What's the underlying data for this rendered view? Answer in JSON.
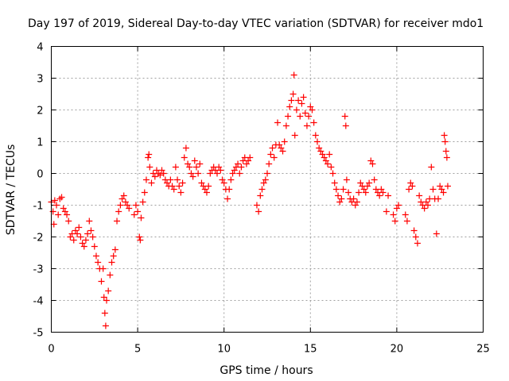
{
  "chart_data": {
    "type": "scatter",
    "title": "Day 197 of 2019, Sidereal Day-to-day VTEC variation (SDTVAR) for receiver mdo1",
    "xlabel": "GPS time / hours",
    "ylabel": "SDTVAR / TECUs",
    "xlim": [
      0,
      25
    ],
    "ylim": [
      -5,
      4
    ],
    "x_ticks": [
      "0",
      "5",
      "10",
      "15",
      "20",
      "25"
    ],
    "y_ticks": [
      "-5",
      "-4",
      "-3",
      "-2",
      "-1",
      "0",
      "1",
      "2",
      "3",
      "4"
    ],
    "grid": true,
    "marker": "+",
    "color": "#ff0000",
    "series": [
      {
        "name": "SDTVAR",
        "points": [
          [
            0.0,
            -0.9
          ],
          [
            0.1,
            -1.2
          ],
          [
            0.15,
            -1.6
          ],
          [
            0.2,
            -0.85
          ],
          [
            0.3,
            -1.0
          ],
          [
            0.4,
            -1.3
          ],
          [
            0.5,
            -0.8
          ],
          [
            0.6,
            -0.75
          ],
          [
            0.7,
            -1.1
          ],
          [
            0.8,
            -1.2
          ],
          [
            0.9,
            -1.3
          ],
          [
            1.0,
            -1.5
          ],
          [
            1.1,
            -2.0
          ],
          [
            1.2,
            -1.9
          ],
          [
            1.3,
            -2.1
          ],
          [
            1.4,
            -1.8
          ],
          [
            1.5,
            -1.9
          ],
          [
            1.6,
            -1.7
          ],
          [
            1.7,
            -2.0
          ],
          [
            1.8,
            -2.2
          ],
          [
            1.9,
            -2.3
          ],
          [
            2.0,
            -2.1
          ],
          [
            2.1,
            -1.9
          ],
          [
            2.2,
            -1.5
          ],
          [
            2.3,
            -1.8
          ],
          [
            2.4,
            -2.0
          ],
          [
            2.5,
            -2.3
          ],
          [
            2.6,
            -2.6
          ],
          [
            2.7,
            -2.8
          ],
          [
            2.8,
            -3.0
          ],
          [
            2.9,
            -3.4
          ],
          [
            3.0,
            -3.0
          ],
          [
            3.05,
            -3.9
          ],
          [
            3.1,
            -4.4
          ],
          [
            3.15,
            -4.8
          ],
          [
            3.2,
            -4.0
          ],
          [
            3.3,
            -3.7
          ],
          [
            3.4,
            -3.2
          ],
          [
            3.5,
            -2.8
          ],
          [
            3.6,
            -2.6
          ],
          [
            3.7,
            -2.4
          ],
          [
            3.8,
            -1.5
          ],
          [
            3.9,
            -1.2
          ],
          [
            4.0,
            -1.0
          ],
          [
            4.1,
            -0.8
          ],
          [
            4.2,
            -0.7
          ],
          [
            4.3,
            -0.9
          ],
          [
            4.4,
            -1.0
          ],
          [
            4.5,
            -1.1
          ],
          [
            4.8,
            -1.3
          ],
          [
            4.9,
            -1.0
          ],
          [
            5.0,
            -1.2
          ],
          [
            5.1,
            -2.0
          ],
          [
            5.15,
            -2.1
          ],
          [
            5.2,
            -1.4
          ],
          [
            5.3,
            -0.9
          ],
          [
            5.4,
            -0.6
          ],
          [
            5.5,
            -0.2
          ],
          [
            5.6,
            0.5
          ],
          [
            5.65,
            0.6
          ],
          [
            5.7,
            0.2
          ],
          [
            5.8,
            -0.3
          ],
          [
            5.9,
            0.0
          ],
          [
            6.0,
            -0.1
          ],
          [
            6.1,
            0.1
          ],
          [
            6.2,
            0.0
          ],
          [
            6.3,
            -0.05
          ],
          [
            6.4,
            0.1
          ],
          [
            6.5,
            0.0
          ],
          [
            6.6,
            -0.2
          ],
          [
            6.7,
            -0.3
          ],
          [
            6.8,
            -0.4
          ],
          [
            6.9,
            -0.2
          ],
          [
            7.0,
            -0.4
          ],
          [
            7.1,
            -0.5
          ],
          [
            7.2,
            0.2
          ],
          [
            7.3,
            -0.2
          ],
          [
            7.4,
            -0.4
          ],
          [
            7.5,
            -0.6
          ],
          [
            7.6,
            -0.3
          ],
          [
            7.7,
            0.5
          ],
          [
            7.8,
            0.8
          ],
          [
            7.9,
            0.3
          ],
          [
            8.0,
            0.2
          ],
          [
            8.1,
            0.0
          ],
          [
            8.2,
            -0.1
          ],
          [
            8.3,
            0.4
          ],
          [
            8.4,
            0.2
          ],
          [
            8.5,
            0.0
          ],
          [
            8.6,
            0.3
          ],
          [
            8.7,
            -0.3
          ],
          [
            8.8,
            -0.4
          ],
          [
            8.9,
            -0.5
          ],
          [
            9.0,
            -0.6
          ],
          [
            9.1,
            -0.4
          ],
          [
            9.2,
            0.0
          ],
          [
            9.3,
            0.1
          ],
          [
            9.4,
            0.2
          ],
          [
            9.5,
            0.1
          ],
          [
            9.6,
            0.0
          ],
          [
            9.7,
            0.2
          ],
          [
            9.8,
            0.1
          ],
          [
            9.9,
            -0.2
          ],
          [
            10.0,
            -0.3
          ],
          [
            10.1,
            -0.5
          ],
          [
            10.2,
            -0.8
          ],
          [
            10.3,
            -0.5
          ],
          [
            10.4,
            -0.2
          ],
          [
            10.5,
            0.0
          ],
          [
            10.6,
            0.1
          ],
          [
            10.7,
            0.2
          ],
          [
            10.8,
            0.3
          ],
          [
            10.9,
            0.0
          ],
          [
            11.0,
            0.2
          ],
          [
            11.1,
            0.4
          ],
          [
            11.2,
            0.5
          ],
          [
            11.3,
            0.3
          ],
          [
            11.4,
            0.4
          ],
          [
            11.5,
            0.5
          ],
          [
            11.9,
            -1.0
          ],
          [
            12.0,
            -1.2
          ],
          [
            12.1,
            -0.7
          ],
          [
            12.2,
            -0.5
          ],
          [
            12.3,
            -0.3
          ],
          [
            12.4,
            -0.2
          ],
          [
            12.5,
            0.0
          ],
          [
            12.6,
            0.3
          ],
          [
            12.7,
            0.6
          ],
          [
            12.8,
            0.8
          ],
          [
            12.9,
            0.5
          ],
          [
            13.0,
            0.9
          ],
          [
            13.1,
            1.6
          ],
          [
            13.2,
            0.9
          ],
          [
            13.3,
            0.8
          ],
          [
            13.4,
            0.7
          ],
          [
            13.5,
            1.0
          ],
          [
            13.6,
            1.5
          ],
          [
            13.7,
            1.8
          ],
          [
            13.8,
            2.1
          ],
          [
            13.9,
            2.3
          ],
          [
            14.0,
            2.5
          ],
          [
            14.05,
            3.1
          ],
          [
            14.1,
            1.2
          ],
          [
            14.2,
            2.0
          ],
          [
            14.3,
            2.3
          ],
          [
            14.4,
            1.8
          ],
          [
            14.5,
            2.2
          ],
          [
            14.6,
            2.4
          ],
          [
            14.7,
            1.9
          ],
          [
            14.8,
            1.5
          ],
          [
            14.9,
            1.8
          ],
          [
            15.0,
            2.1
          ],
          [
            15.1,
            2.0
          ],
          [
            15.2,
            1.6
          ],
          [
            15.3,
            1.2
          ],
          [
            15.4,
            1.0
          ],
          [
            15.5,
            0.8
          ],
          [
            15.6,
            0.7
          ],
          [
            15.7,
            0.6
          ],
          [
            15.8,
            0.5
          ],
          [
            15.9,
            0.4
          ],
          [
            16.0,
            0.3
          ],
          [
            16.1,
            0.6
          ],
          [
            16.2,
            0.2
          ],
          [
            16.3,
            0.0
          ],
          [
            16.4,
            -0.3
          ],
          [
            16.5,
            -0.5
          ],
          [
            16.6,
            -0.7
          ],
          [
            16.7,
            -0.9
          ],
          [
            16.8,
            -0.8
          ],
          [
            16.9,
            -0.5
          ],
          [
            17.0,
            1.8
          ],
          [
            17.05,
            1.5
          ],
          [
            17.1,
            -0.2
          ],
          [
            17.2,
            -0.6
          ],
          [
            17.3,
            -0.8
          ],
          [
            17.4,
            -0.9
          ],
          [
            17.5,
            -0.8
          ],
          [
            17.6,
            -1.0
          ],
          [
            17.7,
            -0.9
          ],
          [
            17.8,
            -0.6
          ],
          [
            17.9,
            -0.3
          ],
          [
            18.0,
            -0.4
          ],
          [
            18.1,
            -0.5
          ],
          [
            18.2,
            -0.6
          ],
          [
            18.3,
            -0.4
          ],
          [
            18.4,
            -0.3
          ],
          [
            18.5,
            0.4
          ],
          [
            18.6,
            0.3
          ],
          [
            18.7,
            -0.2
          ],
          [
            18.8,
            -0.5
          ],
          [
            18.9,
            -0.6
          ],
          [
            19.0,
            -0.7
          ],
          [
            19.1,
            -0.5
          ],
          [
            19.2,
            -0.6
          ],
          [
            19.4,
            -1.2
          ],
          [
            19.5,
            -0.7
          ],
          [
            19.8,
            -1.3
          ],
          [
            19.9,
            -1.5
          ],
          [
            20.0,
            -1.1
          ],
          [
            20.1,
            -1.0
          ],
          [
            20.5,
            -1.3
          ],
          [
            20.6,
            -1.5
          ],
          [
            20.7,
            -0.5
          ],
          [
            20.8,
            -0.3
          ],
          [
            20.9,
            -0.4
          ],
          [
            21.0,
            -1.8
          ],
          [
            21.1,
            -2.0
          ],
          [
            21.2,
            -2.2
          ],
          [
            21.3,
            -0.7
          ],
          [
            21.4,
            -0.9
          ],
          [
            21.5,
            -1.0
          ],
          [
            21.6,
            -1.1
          ],
          [
            21.7,
            -0.9
          ],
          [
            21.8,
            -1.0
          ],
          [
            21.9,
            -0.8
          ],
          [
            22.0,
            0.2
          ],
          [
            22.1,
            -0.5
          ],
          [
            22.2,
            -0.8
          ],
          [
            22.3,
            -1.9
          ],
          [
            22.4,
            -0.8
          ],
          [
            22.5,
            -0.4
          ],
          [
            22.6,
            -0.5
          ],
          [
            22.7,
            -0.6
          ],
          [
            22.75,
            1.2
          ],
          [
            22.8,
            1.0
          ],
          [
            22.85,
            0.7
          ],
          [
            22.9,
            0.5
          ],
          [
            22.95,
            -0.4
          ]
        ]
      }
    ]
  }
}
